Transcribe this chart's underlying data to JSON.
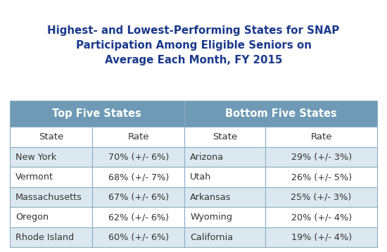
{
  "title_line1": "Highest- and Lowest-Performing States for SNAP",
  "title_line2": "Participation Among Eligible Seniors on",
  "title_line3": "Average Each Month, FY 2015",
  "title_color": "#1b3a8c",
  "header_bg_color": "#6e9ab5",
  "header_text_color": "#ffffff",
  "subheader_bg_color": "#ffffff",
  "subheader_text_color": "#333333",
  "row_colors": [
    "#dce8f0",
    "#ffffff"
  ],
  "table_border_color": "#8aaec5",
  "sub_headers": [
    "State",
    "Rate",
    "State",
    "Rate"
  ],
  "top_states": [
    "New York",
    "Vermont",
    "Massachusetts",
    "Oregon",
    "Rhode Island"
  ],
  "top_rates": [
    "70% (+/- 6%)",
    "68% (+/- 7%)",
    "67% (+/- 6%)",
    "62% (+/- 6%)",
    "60% (+/- 6%)"
  ],
  "bottom_states": [
    "Arizona",
    "Utah",
    "Arkansas",
    "Wyoming",
    "California"
  ],
  "bottom_rates": [
    "29% (+/- 3%)",
    "26% (+/- 5%)",
    "25% (+/- 3%)",
    "20% (+/- 4%)",
    "19% (+/- 4%)"
  ],
  "background_color": "#ffffff",
  "title_fontsize": 10.8,
  "header_fontsize": 10.5,
  "subheader_fontsize": 9.5,
  "data_fontsize": 9.2,
  "fig_width": 5.5,
  "fig_height": 3.58,
  "dpi": 100
}
